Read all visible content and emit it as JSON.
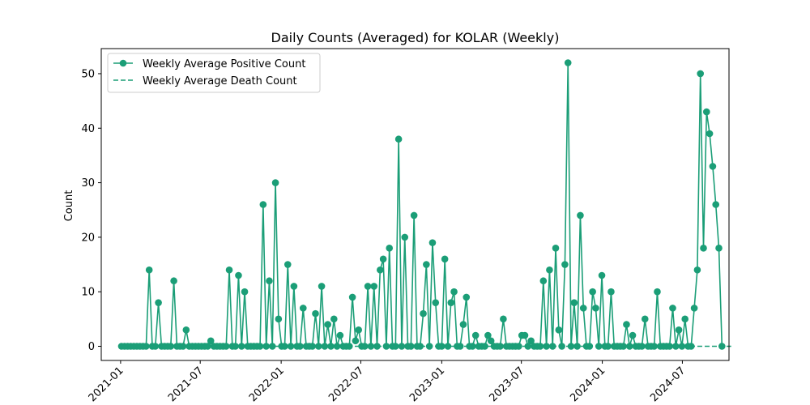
{
  "chart_data": {
    "type": "line",
    "title": "Daily Counts (Averaged) for KOLAR (Weekly)",
    "xlabel": "",
    "ylabel": "Count",
    "x_start": "2021-01-03",
    "x_interval_days": 7,
    "xlim": [
      "2020-11-18",
      "2024-10-15"
    ],
    "ylim": [
      -2.6,
      54.6
    ],
    "x_ticks": [
      "2021-01",
      "2021-07",
      "2022-01",
      "2022-07",
      "2023-01",
      "2023-07",
      "2024-01",
      "2024-07"
    ],
    "y_ticks": [
      0,
      10,
      20,
      30,
      40,
      50
    ],
    "grid": false,
    "legend_position": "top-left",
    "series": [
      {
        "name": "Weekly Average Positive Count",
        "color": "#1b9e77",
        "style": "solid-marker",
        "values": [
          0,
          0,
          0,
          0,
          0,
          0,
          0,
          0,
          0,
          14,
          0,
          0,
          8,
          0,
          0,
          0,
          0,
          12,
          0,
          0,
          0,
          3,
          0,
          0,
          0,
          0,
          0,
          0,
          0,
          1,
          0,
          0,
          0,
          0,
          0,
          14,
          0,
          0,
          13,
          0,
          10,
          0,
          0,
          0,
          0,
          0,
          26,
          0,
          12,
          0,
          30,
          5,
          0,
          0,
          15,
          0,
          11,
          0,
          0,
          7,
          0,
          0,
          0,
          6,
          0,
          11,
          0,
          4,
          0,
          5,
          0,
          2,
          0,
          0,
          0,
          9,
          1,
          3,
          0,
          0,
          11,
          0,
          11,
          0,
          14,
          16,
          0,
          18,
          0,
          0,
          38,
          0,
          20,
          0,
          0,
          24,
          0,
          0,
          6,
          15,
          0,
          19,
          8,
          0,
          0,
          16,
          0,
          8,
          10,
          0,
          0,
          4,
          9,
          0,
          0,
          2,
          0,
          0,
          0,
          2,
          1,
          0,
          0,
          0,
          5,
          0,
          0,
          0,
          0,
          0,
          2,
          2,
          0,
          1,
          0,
          0,
          0,
          12,
          0,
          14,
          0,
          18,
          3,
          0,
          15,
          52,
          0,
          8,
          0,
          24,
          7,
          0,
          0,
          10,
          7,
          0,
          13,
          0,
          0,
          10,
          0,
          0,
          0,
          0,
          4,
          0,
          2,
          0,
          0,
          0,
          5,
          0,
          0,
          0,
          10,
          0,
          0,
          0,
          0,
          7,
          0,
          3,
          0,
          5,
          0,
          0,
          7,
          14,
          50,
          18,
          43,
          39,
          33,
          26,
          18,
          0
        ]
      },
      {
        "name": "Weekly Average Death Count",
        "color": "#1b9e77",
        "style": "dashed",
        "values": [
          0,
          0,
          0,
          0,
          0,
          0,
          0,
          0,
          0,
          0,
          0,
          0,
          0,
          0,
          0,
          0,
          0,
          0,
          0,
          0,
          0,
          0,
          0,
          0,
          0,
          0,
          0,
          0,
          0,
          0,
          0,
          0,
          0,
          0,
          0,
          0,
          0,
          0,
          0,
          0,
          0,
          0,
          0,
          0,
          0,
          0,
          0,
          0,
          0,
          0,
          0,
          0,
          0,
          0,
          0,
          0,
          0,
          0,
          0,
          0,
          0,
          0,
          0,
          0,
          0,
          0,
          0,
          0,
          0,
          0,
          0,
          0,
          0,
          0,
          0,
          0,
          0,
          0,
          0,
          0,
          0,
          0,
          0,
          0,
          0,
          0,
          0,
          0,
          0,
          0,
          0,
          0,
          0,
          0,
          0,
          0,
          0,
          0,
          0,
          0,
          0,
          0,
          0,
          0,
          0,
          0,
          0,
          0,
          0,
          0,
          0,
          0,
          0,
          0,
          0,
          0,
          0,
          0,
          0,
          0,
          0,
          0,
          0,
          0,
          0,
          0,
          0,
          0,
          0,
          0,
          0,
          0,
          0,
          0,
          0,
          0,
          0,
          0,
          0,
          0,
          0,
          0,
          0,
          0,
          0,
          0,
          0,
          0,
          0,
          0,
          0,
          0,
          0,
          0,
          0,
          0,
          0,
          0,
          0,
          0,
          0,
          0,
          0,
          0,
          0,
          0,
          0,
          0,
          0,
          0,
          0,
          0,
          0,
          0,
          0,
          0,
          0,
          0,
          0,
          0,
          0,
          0,
          0,
          0,
          0,
          0,
          0,
          0,
          0,
          0,
          0,
          0,
          0,
          0,
          0,
          0,
          0,
          0,
          0
        ]
      }
    ]
  }
}
